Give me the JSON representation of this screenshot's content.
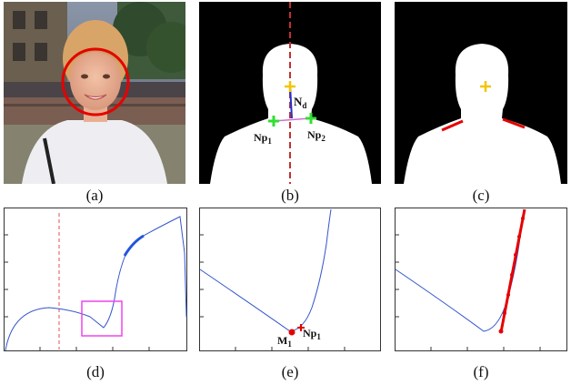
{
  "captions": [
    "(a)",
    "(b)",
    "(c)",
    "(d)",
    "(e)",
    "(f)"
  ],
  "panel_b": {
    "label_nd": "N",
    "label_nd_sub": "d",
    "label_np1": "Np",
    "label_np1_sub": "1",
    "label_np2": "Np",
    "label_np2_sub": "2"
  },
  "panel_e": {
    "label_m1": "M",
    "label_m1_sub": "1",
    "label_np1": "Np",
    "label_np1_sub": "1"
  },
  "colors": {
    "curve": "#3355cc",
    "highlight": "#e60000",
    "marker_green": "#33dd33",
    "marker_yellow": "#f5c400",
    "roi": "#ee44ee",
    "dashed": "#e05050"
  },
  "panel_a": {
    "description_icons": [
      "face-detection-circle"
    ]
  }
}
